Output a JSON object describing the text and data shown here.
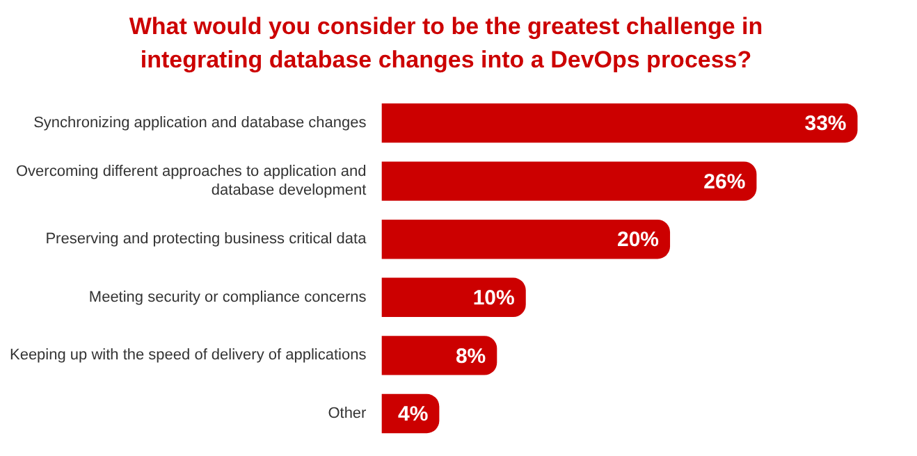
{
  "chart_data": {
    "type": "bar",
    "orientation": "horizontal",
    "title": "What would you consider to be the greatest challenge in integrating database changes into a DevOps process?",
    "categories": [
      "Synchronizing application and database changes",
      "Overcoming different approaches to application and database development",
      "Preserving and protecting business critical data",
      "Meeting security or compliance concerns",
      "Keeping up with the speed of delivery of applications",
      "Other"
    ],
    "values": [
      33,
      26,
      20,
      10,
      8,
      4
    ],
    "value_labels": [
      "33%",
      "26%",
      "20%",
      "10%",
      "8%",
      "4%"
    ],
    "color": "#cc0000",
    "tick_labels": "y"
  }
}
